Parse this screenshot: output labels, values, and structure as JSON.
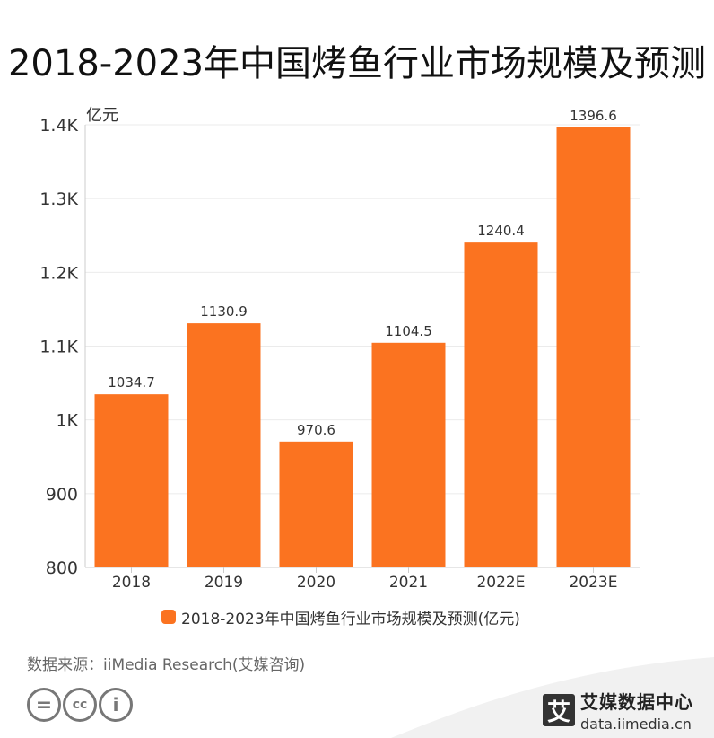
{
  "title": "2018-2023年中国烤鱼行业市场规模及预测",
  "source": "数据来源：iiMedia Research(艾媒咨询)",
  "brand": {
    "mark": "艾",
    "name": "艾媒数据中心",
    "url": "data.iimedia.cn"
  },
  "license_icons": [
    "equal-icon",
    "cc-icon",
    "person-icon"
  ],
  "license_glyphs": {
    "equal": "=",
    "cc": "cc",
    "by": "i"
  },
  "colors": {
    "bar": "#fb7320",
    "grid": "#ebebeb",
    "axis": "#cccccc"
  },
  "chart_data": {
    "type": "bar",
    "title": "2018-2023年中国烤鱼行业市场规模及预测",
    "ylabel": "亿元",
    "categories": [
      "2018",
      "2019",
      "2020",
      "2021",
      "2022E",
      "2023E"
    ],
    "series": [
      {
        "name": "2018-2023年中国烤鱼行业市场规模及预测(亿元)",
        "values": [
          1034.7,
          1130.9,
          970.6,
          1104.5,
          1240.4,
          1396.6
        ]
      }
    ],
    "value_labels": [
      "1034.7",
      "1130.9",
      "970.6",
      "1104.5",
      "1240.4",
      "1396.6"
    ],
    "ylim": [
      800,
      1400
    ],
    "yticks": [
      800,
      900,
      1000,
      1100,
      1200,
      1300,
      1400
    ],
    "ytick_labels": [
      "800",
      "900",
      "1K",
      "1.1K",
      "1.2K",
      "1.3K",
      "1.4K"
    ],
    "grid": true,
    "legend": "bottom"
  }
}
